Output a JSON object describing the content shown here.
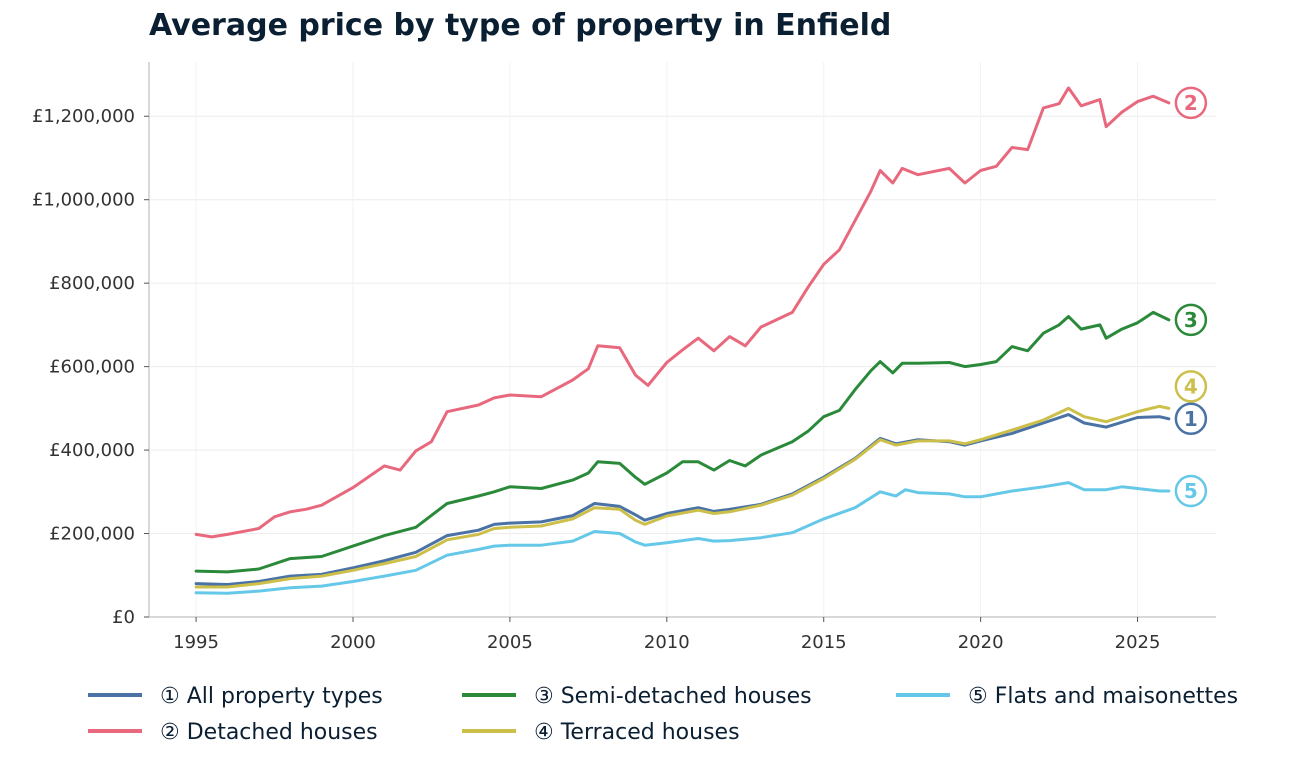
{
  "chart_data": {
    "type": "line",
    "title": "Average price by type of property in Enfield",
    "xlabel": "",
    "ylabel": "",
    "xlim": [
      1993.5,
      2027.5
    ],
    "ylim": [
      0,
      1330000
    ],
    "x_ticks": [
      1995,
      2000,
      2005,
      2010,
      2015,
      2020,
      2025
    ],
    "x_tick_labels": [
      "1995",
      "2000",
      "2005",
      "2010",
      "2015",
      "2020",
      "2025"
    ],
    "y_ticks": [
      0,
      200000,
      400000,
      600000,
      800000,
      1000000,
      1200000
    ],
    "y_tick_labels": [
      "£0",
      "£200,000",
      "£400,000",
      "£600,000",
      "£800,000",
      "£1,000,000",
      "£1,200,000"
    ],
    "grid": true,
    "legend_position": "bottom",
    "series": [
      {
        "name": "① All property types",
        "end_label": "1",
        "color": "#4a72a5",
        "points": [
          [
            1995,
            80000
          ],
          [
            1996,
            78000
          ],
          [
            1997,
            85000
          ],
          [
            1998,
            98000
          ],
          [
            1999,
            102000
          ],
          [
            2000,
            118000
          ],
          [
            2001,
            135000
          ],
          [
            2002,
            155000
          ],
          [
            2003,
            195000
          ],
          [
            2004,
            208000
          ],
          [
            2004.5,
            222000
          ],
          [
            2005,
            225000
          ],
          [
            2006,
            228000
          ],
          [
            2007,
            243000
          ],
          [
            2007.7,
            272000
          ],
          [
            2008.5,
            265000
          ],
          [
            2009,
            245000
          ],
          [
            2009.3,
            232000
          ],
          [
            2010,
            248000
          ],
          [
            2011,
            262000
          ],
          [
            2011.5,
            253000
          ],
          [
            2012,
            258000
          ],
          [
            2013,
            270000
          ],
          [
            2014,
            295000
          ],
          [
            2015,
            335000
          ],
          [
            2016,
            380000
          ],
          [
            2016.8,
            428000
          ],
          [
            2017.3,
            415000
          ],
          [
            2018,
            425000
          ],
          [
            2019,
            420000
          ],
          [
            2019.5,
            412000
          ],
          [
            2020,
            422000
          ],
          [
            2021,
            440000
          ],
          [
            2022,
            465000
          ],
          [
            2022.8,
            485000
          ],
          [
            2023.3,
            465000
          ],
          [
            2024,
            455000
          ],
          [
            2025,
            478000
          ],
          [
            2025.7,
            480000
          ],
          [
            2026,
            475000
          ]
        ]
      },
      {
        "name": "② Detached houses",
        "end_label": "2",
        "color": "#e8697d",
        "points": [
          [
            1995,
            198000
          ],
          [
            1995.5,
            192000
          ],
          [
            1996,
            198000
          ],
          [
            1997,
            212000
          ],
          [
            1997.5,
            240000
          ],
          [
            1998,
            252000
          ],
          [
            1998.5,
            258000
          ],
          [
            1999,
            268000
          ],
          [
            2000,
            310000
          ],
          [
            2001,
            362000
          ],
          [
            2001.5,
            352000
          ],
          [
            2002,
            398000
          ],
          [
            2002.5,
            420000
          ],
          [
            2003,
            492000
          ],
          [
            2004,
            508000
          ],
          [
            2004.5,
            525000
          ],
          [
            2005,
            532000
          ],
          [
            2006,
            528000
          ],
          [
            2007,
            568000
          ],
          [
            2007.5,
            595000
          ],
          [
            2007.8,
            650000
          ],
          [
            2008.5,
            645000
          ],
          [
            2009,
            580000
          ],
          [
            2009.4,
            555000
          ],
          [
            2010,
            610000
          ],
          [
            2010.5,
            640000
          ],
          [
            2011,
            668000
          ],
          [
            2011.5,
            638000
          ],
          [
            2012,
            672000
          ],
          [
            2012.5,
            650000
          ],
          [
            2013,
            695000
          ],
          [
            2014,
            730000
          ],
          [
            2014.5,
            790000
          ],
          [
            2015,
            845000
          ],
          [
            2015.5,
            880000
          ],
          [
            2016,
            950000
          ],
          [
            2016.5,
            1020000
          ],
          [
            2016.8,
            1070000
          ],
          [
            2017.2,
            1040000
          ],
          [
            2017.5,
            1075000
          ],
          [
            2018,
            1060000
          ],
          [
            2019,
            1075000
          ],
          [
            2019.5,
            1040000
          ],
          [
            2020,
            1070000
          ],
          [
            2020.5,
            1080000
          ],
          [
            2021,
            1125000
          ],
          [
            2021.5,
            1120000
          ],
          [
            2022,
            1220000
          ],
          [
            2022.5,
            1230000
          ],
          [
            2022.8,
            1268000
          ],
          [
            2023.2,
            1225000
          ],
          [
            2023.8,
            1240000
          ],
          [
            2024,
            1175000
          ],
          [
            2024.5,
            1210000
          ],
          [
            2025,
            1235000
          ],
          [
            2025.5,
            1248000
          ],
          [
            2026,
            1232000
          ]
        ]
      },
      {
        "name": "③ Semi-detached houses",
        "end_label": "3",
        "color": "#2a8a3a",
        "points": [
          [
            1995,
            110000
          ],
          [
            1996,
            108000
          ],
          [
            1997,
            115000
          ],
          [
            1998,
            140000
          ],
          [
            1999,
            145000
          ],
          [
            2000,
            170000
          ],
          [
            2001,
            195000
          ],
          [
            2002,
            215000
          ],
          [
            2003,
            272000
          ],
          [
            2004,
            290000
          ],
          [
            2004.5,
            300000
          ],
          [
            2005,
            312000
          ],
          [
            2006,
            308000
          ],
          [
            2007,
            328000
          ],
          [
            2007.5,
            345000
          ],
          [
            2007.8,
            372000
          ],
          [
            2008.5,
            368000
          ],
          [
            2009,
            335000
          ],
          [
            2009.3,
            318000
          ],
          [
            2010,
            345000
          ],
          [
            2010.5,
            372000
          ],
          [
            2011,
            372000
          ],
          [
            2011.5,
            352000
          ],
          [
            2012,
            375000
          ],
          [
            2012.5,
            362000
          ],
          [
            2013,
            388000
          ],
          [
            2014,
            420000
          ],
          [
            2014.5,
            445000
          ],
          [
            2015,
            480000
          ],
          [
            2015.5,
            495000
          ],
          [
            2016,
            545000
          ],
          [
            2016.5,
            590000
          ],
          [
            2016.8,
            612000
          ],
          [
            2017.2,
            585000
          ],
          [
            2017.5,
            608000
          ],
          [
            2018,
            608000
          ],
          [
            2019,
            610000
          ],
          [
            2019.5,
            600000
          ],
          [
            2020,
            605000
          ],
          [
            2020.5,
            612000
          ],
          [
            2021,
            648000
          ],
          [
            2021.5,
            638000
          ],
          [
            2022,
            680000
          ],
          [
            2022.5,
            700000
          ],
          [
            2022.8,
            720000
          ],
          [
            2023.2,
            690000
          ],
          [
            2023.8,
            700000
          ],
          [
            2024,
            668000
          ],
          [
            2024.5,
            690000
          ],
          [
            2025,
            705000
          ],
          [
            2025.5,
            730000
          ],
          [
            2026,
            712000
          ]
        ]
      },
      {
        "name": "④ Terraced houses",
        "end_label": "4",
        "color": "#ccbf4a",
        "points": [
          [
            1995,
            72000
          ],
          [
            1996,
            72000
          ],
          [
            1997,
            80000
          ],
          [
            1998,
            92000
          ],
          [
            1999,
            98000
          ],
          [
            2000,
            112000
          ],
          [
            2001,
            128000
          ],
          [
            2002,
            145000
          ],
          [
            2003,
            185000
          ],
          [
            2004,
            198000
          ],
          [
            2004.5,
            212000
          ],
          [
            2005,
            215000
          ],
          [
            2006,
            218000
          ],
          [
            2007,
            235000
          ],
          [
            2007.7,
            262000
          ],
          [
            2008.5,
            258000
          ],
          [
            2009,
            232000
          ],
          [
            2009.3,
            222000
          ],
          [
            2010,
            242000
          ],
          [
            2011,
            256000
          ],
          [
            2011.5,
            248000
          ],
          [
            2012,
            252000
          ],
          [
            2013,
            268000
          ],
          [
            2014,
            292000
          ],
          [
            2015,
            332000
          ],
          [
            2016,
            378000
          ],
          [
            2016.8,
            425000
          ],
          [
            2017.3,
            412000
          ],
          [
            2018,
            422000
          ],
          [
            2019,
            422000
          ],
          [
            2019.5,
            415000
          ],
          [
            2020,
            425000
          ],
          [
            2021,
            448000
          ],
          [
            2022,
            472000
          ],
          [
            2022.8,
            500000
          ],
          [
            2023.3,
            480000
          ],
          [
            2024,
            468000
          ],
          [
            2025,
            492000
          ],
          [
            2025.7,
            505000
          ],
          [
            2026,
            500000
          ]
        ]
      },
      {
        "name": "⑤ Flats and maisonettes",
        "end_label": "5",
        "color": "#66c8e8",
        "points": [
          [
            1995,
            58000
          ],
          [
            1996,
            57000
          ],
          [
            1997,
            62000
          ],
          [
            1998,
            70000
          ],
          [
            1999,
            74000
          ],
          [
            2000,
            85000
          ],
          [
            2001,
            98000
          ],
          [
            2002,
            112000
          ],
          [
            2003,
            148000
          ],
          [
            2004,
            162000
          ],
          [
            2004.5,
            170000
          ],
          [
            2005,
            172000
          ],
          [
            2006,
            172000
          ],
          [
            2007,
            182000
          ],
          [
            2007.7,
            205000
          ],
          [
            2008.5,
            200000
          ],
          [
            2009,
            180000
          ],
          [
            2009.3,
            172000
          ],
          [
            2010,
            178000
          ],
          [
            2011,
            188000
          ],
          [
            2011.5,
            182000
          ],
          [
            2012,
            183000
          ],
          [
            2013,
            190000
          ],
          [
            2014,
            202000
          ],
          [
            2015,
            235000
          ],
          [
            2016,
            262000
          ],
          [
            2016.8,
            300000
          ],
          [
            2017.3,
            290000
          ],
          [
            2017.6,
            305000
          ],
          [
            2018,
            298000
          ],
          [
            2019,
            295000
          ],
          [
            2019.5,
            288000
          ],
          [
            2020,
            288000
          ],
          [
            2021,
            302000
          ],
          [
            2022,
            312000
          ],
          [
            2022.8,
            322000
          ],
          [
            2023.3,
            305000
          ],
          [
            2024,
            305000
          ],
          [
            2024.5,
            312000
          ],
          [
            2025,
            308000
          ],
          [
            2025.7,
            302000
          ],
          [
            2026,
            302000
          ]
        ]
      }
    ]
  }
}
